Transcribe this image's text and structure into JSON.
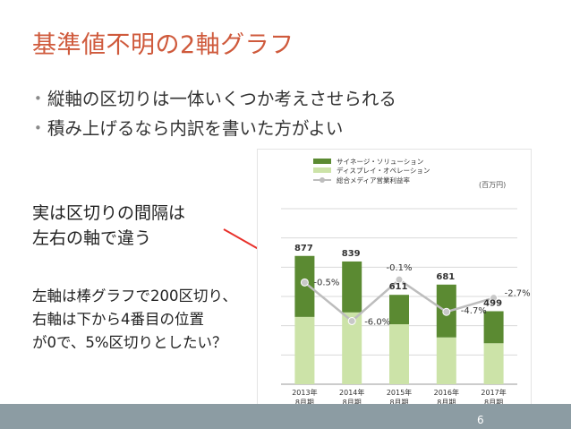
{
  "slide": {
    "title": "基準値不明の2軸グラフ",
    "bullets": [
      "縦軸の区切りは一体いくつか考えさせられる",
      "積み上げるなら内訳を書いた方がよい"
    ],
    "callout_interval": [
      "実は区切りの間隔は",
      "左右の軸で違う"
    ],
    "callout_axis": [
      "左軸は棒グラフで200区切り、",
      "右軸は下から4番目の位置",
      "が0で、5%区切りとしたい？"
    ],
    "page_number": "6",
    "colors": {
      "title": "#cf5a3c",
      "arrow": "#e8302a",
      "footer": "#8c9ca3"
    }
  },
  "chart_data": {
    "type": "bar",
    "unit": "(百万円)",
    "categories": [
      [
        "2013年",
        "8月期"
      ],
      [
        "2014年",
        "8月期"
      ],
      [
        "2015年",
        "8月期"
      ],
      [
        "2016年",
        "8月期"
      ],
      [
        "2017年",
        "8月期"
      ]
    ],
    "series": [
      {
        "name": "サイネージ・ソリューション",
        "color": "#5b8a32",
        "values": [
          417,
          348,
          201,
          361,
          219
        ]
      },
      {
        "name": "ディスプレイ・オペレーション",
        "color": "#cce3a8",
        "values": [
          460,
          491,
          410,
          320,
          280
        ]
      }
    ],
    "totals": [
      877,
      839,
      611,
      681,
      499
    ],
    "line_series": {
      "name": "総合メディア営業利益率",
      "color": "#bdbdbd",
      "values": [
        -0.5,
        -6.0,
        -0.1,
        -4.7,
        -2.7
      ],
      "labels": [
        "-0.5%",
        "-6.0%",
        "-0.1%",
        "-4.7%",
        "-2.7%"
      ]
    },
    "ylim": [
      0,
      1200
    ],
    "y2lim": [
      -15,
      10
    ],
    "grid": true,
    "legend_position": "top-left"
  }
}
